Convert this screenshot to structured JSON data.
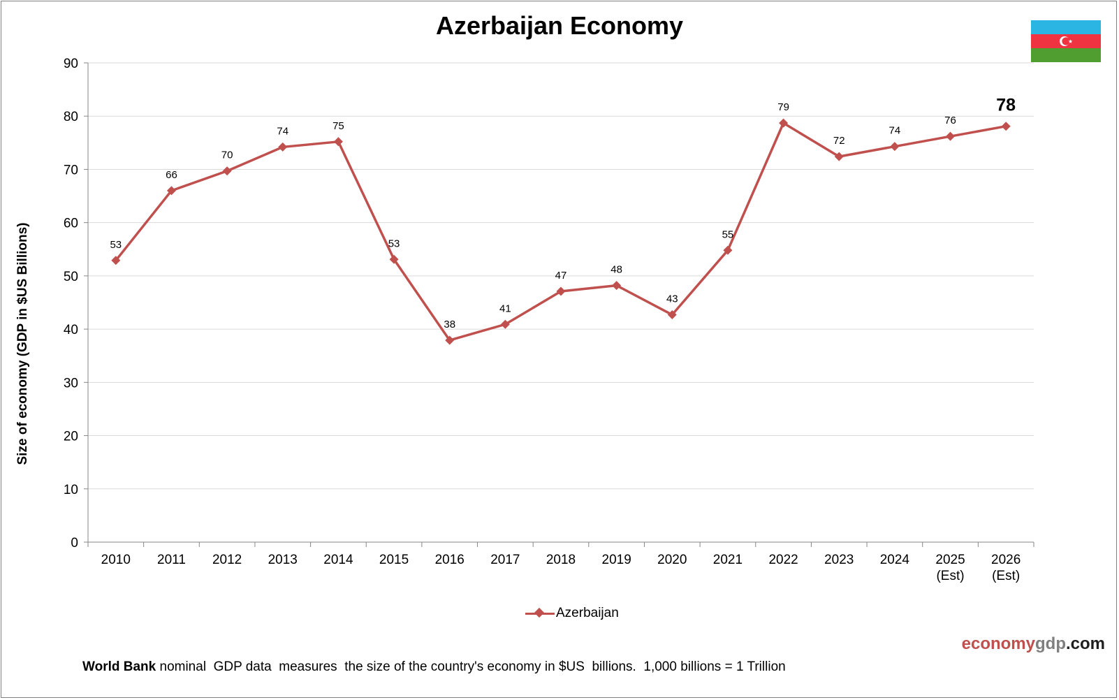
{
  "chart_data": {
    "type": "line",
    "title": "Azerbaijan Economy",
    "ylabel": "Size of economy (GDP in $US Billions)",
    "xlabel": "",
    "ylim": [
      0,
      90
    ],
    "yticks": [
      0,
      10,
      20,
      30,
      40,
      50,
      60,
      70,
      80,
      90
    ],
    "grid": true,
    "legend_position": "bottom",
    "categories": [
      "2010",
      "2011",
      "2012",
      "2013",
      "2014",
      "2015",
      "2016",
      "2017",
      "2018",
      "2019",
      "2020",
      "2021",
      "2022",
      "2023",
      "2024",
      "2025\n(Est)",
      "2026\n(Est)"
    ],
    "series": [
      {
        "name": "Azerbaijan",
        "color": "#c0504d",
        "values": [
          52.9,
          66.0,
          69.7,
          74.2,
          75.2,
          53.1,
          37.9,
          40.9,
          47.1,
          48.2,
          42.7,
          54.8,
          78.7,
          72.4,
          74.3,
          76.2,
          78.1
        ],
        "data_labels": [
          "53",
          "66",
          "70",
          "74",
          "75",
          "53",
          "38",
          "41",
          "47",
          "48",
          "43",
          "55",
          "79",
          "72",
          "74",
          "76",
          "78"
        ]
      }
    ]
  },
  "flag": {
    "country": "Azerbaijan",
    "colors": [
      "#2ab5e3",
      "#ef3340",
      "#509e2f"
    ]
  },
  "branding": {
    "part1": "economy",
    "part2": "gdp",
    "part3": ".com"
  },
  "footnote": {
    "bold": "World Bank",
    "text": " nominal  GDP data  measures  the size of the country's economy in $US  billions.  1,000 billions = 1 Trillion"
  }
}
